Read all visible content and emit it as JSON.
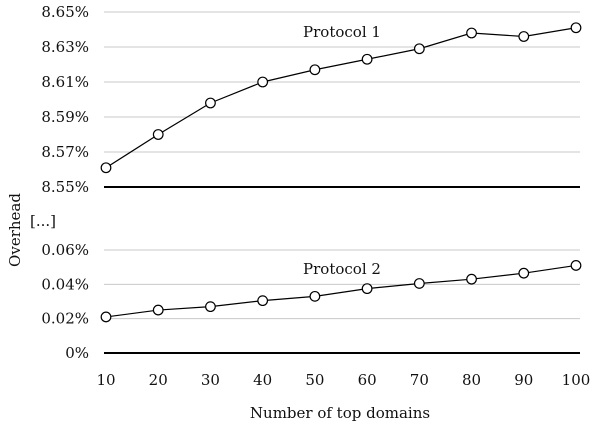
{
  "chart_data": {
    "type": "line",
    "xlabel": "Number of top domains",
    "ylabel": "Overhead",
    "axis_break_label": "[...]",
    "x": [
      10,
      20,
      30,
      40,
      50,
      60,
      70,
      80,
      90,
      100
    ],
    "grid": true,
    "panels": [
      {
        "ylim": [
          8.55,
          8.65
        ],
        "yticks": [
          8.55,
          8.57,
          8.59,
          8.61,
          8.63,
          8.65
        ],
        "ytick_labels": [
          "8.55%",
          "8.57%",
          "8.59%",
          "8.61%",
          "8.63%",
          "8.65%"
        ],
        "series": [
          {
            "name": "Protocol 1",
            "values": [
              8.561,
              8.58,
              8.598,
              8.61,
              8.617,
              8.623,
              8.629,
              8.638,
              8.636,
              8.641
            ]
          }
        ]
      },
      {
        "ylim": [
          0,
          0.06
        ],
        "yticks": [
          0,
          0.02,
          0.04,
          0.06
        ],
        "ytick_labels": [
          "0%",
          "0.02%",
          "0.04%",
          "0.06%"
        ],
        "series": [
          {
            "name": "Protocol 2",
            "values": [
              0.021,
              0.025,
              0.027,
              0.0305,
              0.033,
              0.0375,
              0.0405,
              0.043,
              0.0465,
              0.051
            ]
          }
        ]
      }
    ]
  }
}
